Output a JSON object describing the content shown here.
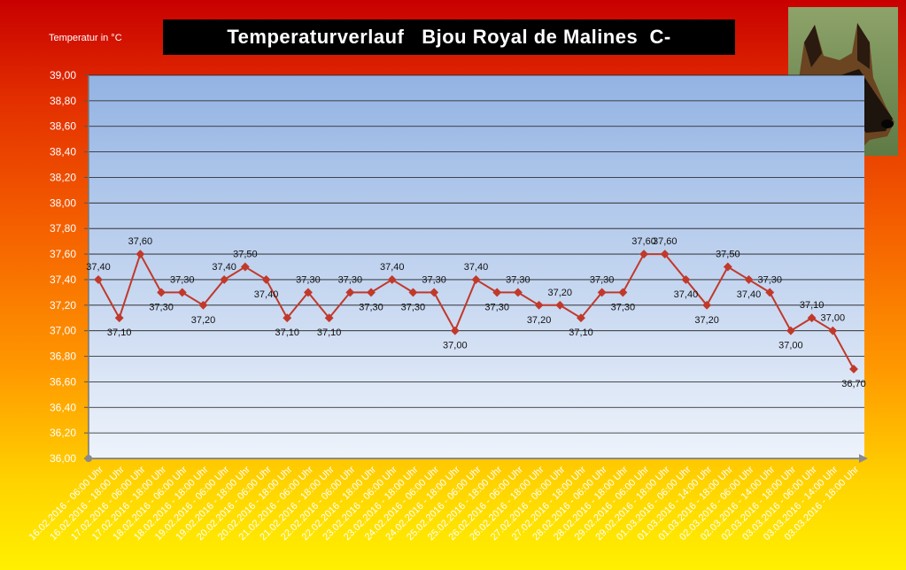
{
  "header": {
    "title": "Temperaturverlauf   Bjou Royal de Malines  C-",
    "unit_label": "Temperatur in °C"
  },
  "photo": {
    "icon": "dog-photo"
  },
  "colors": {
    "plot_top": "#93b3e3",
    "plot_bottom": "#eef3fb",
    "line": "#c0392b",
    "marker": "#c0392b",
    "grid": "#1a1a1a"
  },
  "chart_data": {
    "type": "line",
    "title": "Temperaturverlauf   Bjou Royal de Malines  C-",
    "ylabel": "Temperatur in °C",
    "xlabel": "",
    "ylim": [
      36.0,
      39.0
    ],
    "ytick_step": 0.2,
    "grid": true,
    "legend": "none",
    "categories": [
      "16.02.2016 - 06:00 Uhr",
      "16.02.2016 - 18:00 Uhr",
      "17.02.2016 - 06:00 Uhr",
      "17.02.2016 - 18:00 Uhr",
      "18.02.2016 - 06:00 Uhr",
      "18.02.2016 - 18:00 Uhr",
      "19.02.2016 - 06:00 Uhr",
      "19.02.2016 - 18:00 Uhr",
      "20.02.2016 - 06:00 Uhr",
      "20.02.2016 - 18:00 Uhr",
      "21.02.2016 - 06:00 Uhr",
      "21.02.2016 - 18:00 Uhr",
      "22.02.2016 - 06:00 Uhr",
      "22.02.2016 - 18:00 Uhr",
      "23.02.2016 - 06:00 Uhr",
      "23.02.2016 - 18:00 Uhr",
      "24.02.2016 - 06:00 Uhr",
      "24.02.2016 - 18:00 Uhr",
      "25.02.2016 - 06:00 Uhr",
      "25.02.2016 - 18:00 Uhr",
      "26.02.2016 - 06:00 Uhr",
      "26.02.2016 - 18:00 Uhr",
      "27.02.2016 - 06:00 Uhr",
      "27.02.2016 - 18:00 Uhr",
      "28.02.2016 - 06:00 Uhr",
      "28.02.2016 - 18:00 Uhr",
      "29.02.2016 - 06:00 Uhr",
      "29.02.2016 - 18:00 Uhr",
      "01.03.2016 - 06:00 Uhr",
      "01.03.2016 - 14:00 Uhr",
      "01.03.2016 - 18:00 Uhr",
      "02.03.2016 - 06:00 Uhr",
      "02.03.2016 - 14:00 Uhr",
      "02.03.2016 - 18:00 Uhr",
      "03.03.2016 - 06:00 Uhr",
      "03.03.2016 - 14:00 Uhr",
      "03.03.2016 - 18:00 Uhr"
    ],
    "series": [
      {
        "values": [
          37.4,
          37.1,
          37.6,
          37.3,
          37.3,
          37.2,
          37.4,
          37.5,
          37.4,
          37.1,
          37.3,
          37.1,
          37.3,
          37.3,
          37.4,
          37.3,
          37.3,
          37.0,
          37.4,
          37.3,
          37.3,
          37.2,
          37.2,
          37.1,
          37.3,
          37.3,
          37.6,
          37.6,
          37.4,
          37.2,
          37.5,
          37.4,
          37.3,
          37.0,
          37.1,
          37.0,
          36.7
        ],
        "labels": [
          "37,40",
          "37,10",
          "37,60",
          "37,30",
          "37,30",
          "37,20",
          "37,40",
          "37,50",
          "37,40",
          "37,10",
          "37,30",
          "37,10",
          "37,30",
          "37,30",
          "37,40",
          "37,30",
          "37,30",
          "37,00",
          "37,40",
          "37,30",
          "37,30",
          "37,20",
          "37,20",
          "37,10",
          "37,30",
          "37,30",
          "37,60",
          "37,60",
          "37,40",
          "37,20",
          "37,50",
          "37,40",
          "37,30",
          "37,00",
          "37,10",
          "37,00",
          "36,70"
        ],
        "label_positions": [
          "above",
          "below",
          "above",
          "below",
          "above",
          "below",
          "above",
          "above",
          "below",
          "below",
          "above",
          "below",
          "above",
          "below",
          "above",
          "below",
          "above",
          "below",
          "above",
          "below",
          "above",
          "below",
          "above",
          "below",
          "above",
          "below",
          "above",
          "above",
          "below",
          "below",
          "above",
          "below",
          "above",
          "below",
          "above",
          "above",
          "below"
        ]
      }
    ],
    "ytick_labels": [
      "36,00",
      "36,20",
      "36,40",
      "36,60",
      "36,80",
      "37,00",
      "37,20",
      "37,40",
      "37,60",
      "37,80",
      "38,00",
      "38,20",
      "38,40",
      "38,60",
      "38,80",
      "39,00"
    ]
  }
}
